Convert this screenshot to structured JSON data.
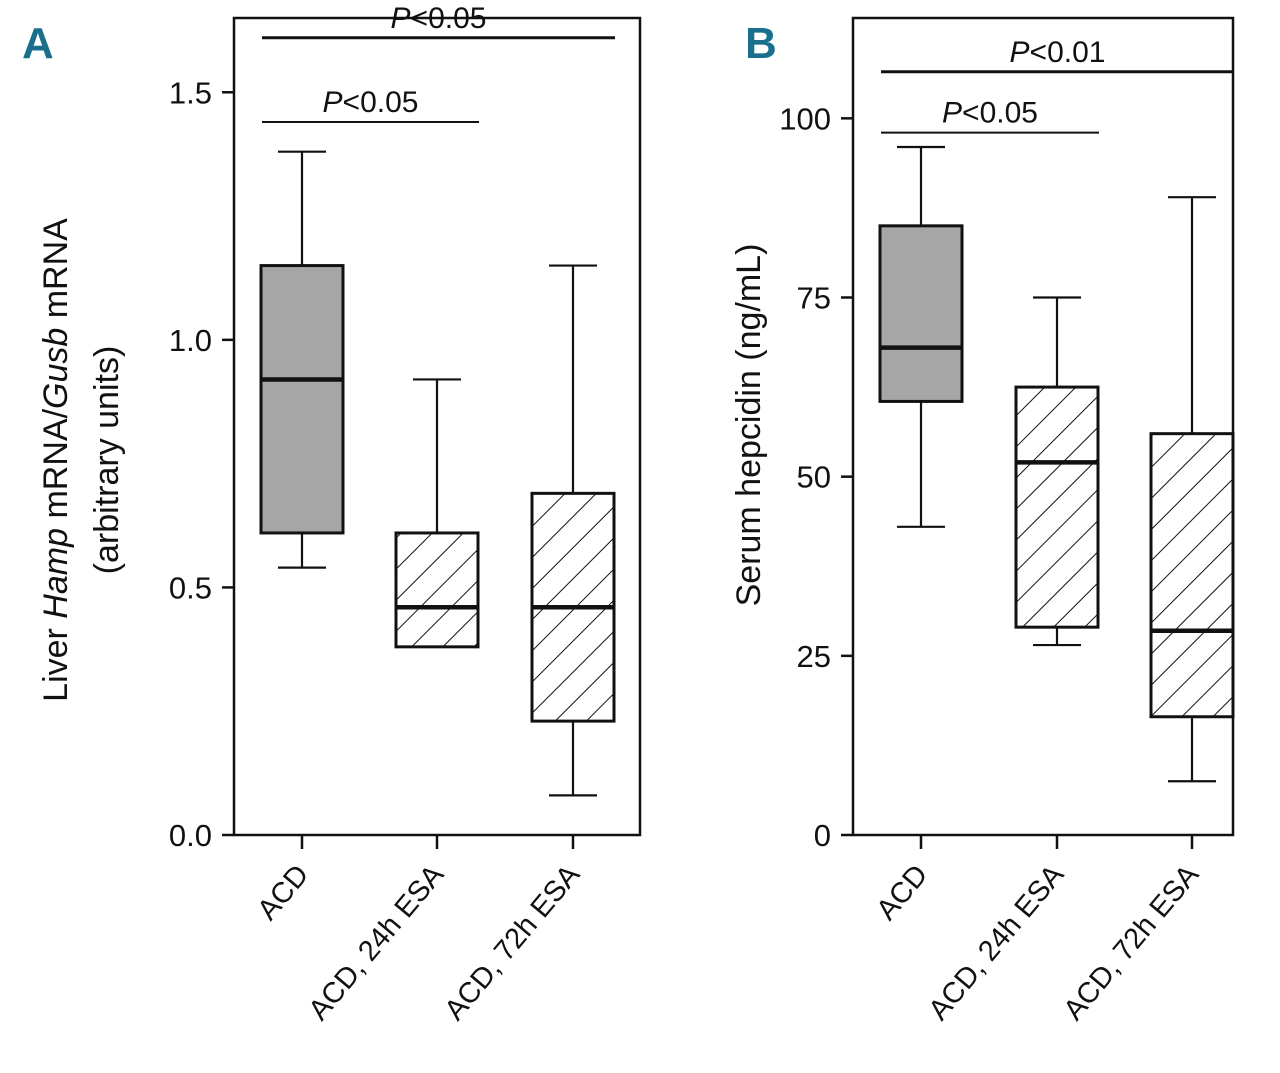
{
  "chart_data": [
    {
      "panel": "A",
      "type": "box",
      "ylabel_parts": [
        "Liver ",
        "Hamp",
        " mRNA/",
        "Gusb",
        " mRNA"
      ],
      "ylabel_line2": "(arbitrary units)",
      "ylim": [
        0,
        1.65
      ],
      "yticks": [
        0.0,
        0.5,
        1.0,
        1.5
      ],
      "ytick_labels": [
        "0.0",
        "0.5",
        "1.0",
        "1.5"
      ],
      "categories": [
        "ACD",
        "ACD, 24h ESA",
        "ACD, 72h ESA"
      ],
      "boxes": [
        {
          "name": "ACD",
          "whisker_low": 0.54,
          "q1": 0.61,
          "median": 0.92,
          "q3": 1.15,
          "whisker_high": 1.38,
          "fill": "solid"
        },
        {
          "name": "ACD, 24h ESA",
          "whisker_low": 0.38,
          "q1": 0.38,
          "median": 0.46,
          "q3": 0.61,
          "whisker_high": 0.92,
          "fill": "hatch"
        },
        {
          "name": "ACD, 72h ESA",
          "whisker_low": 0.08,
          "q1": 0.23,
          "median": 0.46,
          "q3": 0.69,
          "whisker_high": 1.15,
          "fill": "hatch"
        }
      ],
      "comparisons": [
        {
          "from": 0,
          "to": 1,
          "y": 1.44,
          "label_prefix": "P",
          "label_rest": "<0.05"
        },
        {
          "from": 0,
          "to": 2,
          "y": 1.61,
          "label_prefix": "P",
          "label_rest": "<0.05"
        }
      ]
    },
    {
      "panel": "B",
      "type": "box",
      "ylabel": "Serum hepcidin (ng/mL)",
      "ylim": [
        0,
        114
      ],
      "yticks": [
        0,
        25,
        50,
        75,
        100
      ],
      "ytick_labels": [
        "0",
        "25",
        "50",
        "75",
        "100"
      ],
      "categories": [
        "ACD",
        "ACD, 24h ESA",
        "ACD, 72h ESA"
      ],
      "boxes": [
        {
          "name": "ACD",
          "whisker_low": 43,
          "q1": 60.5,
          "median": 68,
          "q3": 85,
          "whisker_high": 96,
          "fill": "solid"
        },
        {
          "name": "ACD, 24h ESA",
          "whisker_low": 26.5,
          "q1": 29,
          "median": 52,
          "q3": 62.5,
          "whisker_high": 75,
          "fill": "hatch"
        },
        {
          "name": "ACD, 72h ESA",
          "whisker_low": 7.5,
          "q1": 16.5,
          "median": 28.5,
          "q3": 56,
          "whisker_high": 89,
          "fill": "hatch"
        }
      ],
      "comparisons": [
        {
          "from": 0,
          "to": 1,
          "y": 98,
          "label_prefix": "P",
          "label_rest": "<0.05"
        },
        {
          "from": 0,
          "to": 2,
          "y": 106.5,
          "label_prefix": "P",
          "label_rest": "<0.01"
        }
      ]
    }
  ],
  "colors": {
    "solid_fill": "#a6a6a6",
    "line": "#111111",
    "panel_letter": "#1a6f8c"
  }
}
